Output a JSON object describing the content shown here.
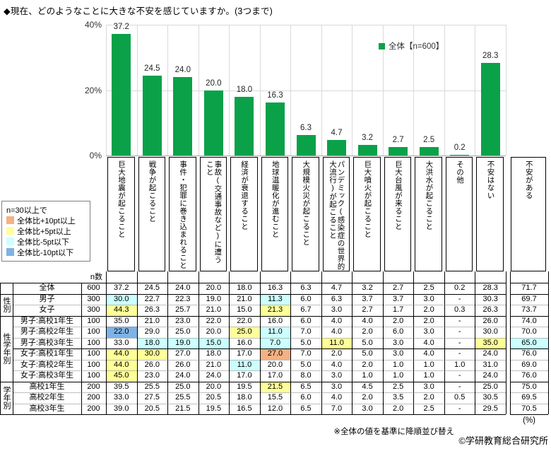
{
  "title": "◆現在、どのようなことに大きな不安を感じていますか。(3つまで)",
  "colors": {
    "bar": "#0aa149",
    "grid": "#d9d9d9",
    "axis": "#a6a6a6",
    "plus10": "#f4b183",
    "plus5": "#ffff99",
    "minus5": "#ccffff",
    "minus10": "#7eb3e6"
  },
  "chart_data": {
    "type": "bar",
    "title": "現在、どのようなことに大きな不安を感じていますか。(3つまで)",
    "legend": "全体【n=600】",
    "ylabel": "%",
    "ylim": [
      0,
      40
    ],
    "yticks": [
      {
        "value": 40,
        "label": "40%"
      },
      {
        "value": 20,
        "label": "20%"
      },
      {
        "value": 0,
        "label": "0%"
      }
    ],
    "grid": true,
    "legend_position": "top-right-inside",
    "categories": [
      "巨大地震が起こること",
      "戦争が起こること",
      "事件・犯罪に巻き込まれること",
      "事故(交通事故など)に遭うこと",
      "経済が衰退すること",
      "地球温暖化が進むこと",
      "大規模火災が起こること",
      "パンデミック(感染症の世界的大流行)が起こること",
      "巨大噴火が起こること",
      "巨大台風が来ること",
      "大洪水が起こること",
      "その他",
      "不安はない"
    ],
    "values": [
      37.2,
      24.5,
      24.0,
      20.0,
      18.0,
      16.3,
      6.3,
      4.7,
      3.2,
      2.7,
      2.5,
      0.2,
      28.3
    ]
  },
  "threshold_legend": {
    "header": "n=30以上で",
    "items": [
      {
        "label": "全体比+10pt以上",
        "color_key": "plus10"
      },
      {
        "label": "全体比+5pt以上",
        "color_key": "plus5"
      },
      {
        "label": "全体比-5pt以下",
        "color_key": "minus5"
      },
      {
        "label": "全体比-10pt以下",
        "color_key": "minus10"
      }
    ]
  },
  "table": {
    "n_header": "n数",
    "extra_column_label": "不安がある",
    "groups": [
      {
        "label": "性別",
        "start": 1,
        "end": 2
      },
      {
        "label": "性学年別",
        "start": 3,
        "end": 8
      },
      {
        "label": "学年別",
        "start": 9,
        "end": 11
      }
    ],
    "rows": [
      {
        "label": "全体",
        "n": "600",
        "sep": "solid-full",
        "values": [
          "37.2",
          "24.5",
          "24.0",
          "20.0",
          "18.0",
          "16.3",
          "6.3",
          "4.7",
          "3.2",
          "2.7",
          "2.5",
          "0.2",
          "28.3",
          "71.7"
        ],
        "highlights": {}
      },
      {
        "label": "男子",
        "n": "300",
        "sep": "dotted",
        "values": [
          "30.0",
          "22.7",
          "22.3",
          "19.0",
          "21.0",
          "11.3",
          "6.0",
          "6.3",
          "3.7",
          "3.7",
          "3.0",
          "-",
          "30.3",
          "69.7"
        ],
        "highlights": {
          "0": "minus5",
          "5": "minus5"
        }
      },
      {
        "label": "女子",
        "n": "300",
        "sep": "solid-full",
        "values": [
          "44.3",
          "26.3",
          "25.7",
          "21.0",
          "15.0",
          "21.3",
          "6.7",
          "3.0",
          "2.7",
          "1.7",
          "2.0",
          "0.3",
          "26.3",
          "73.7"
        ],
        "highlights": {
          "0": "plus5",
          "5": "plus5"
        }
      },
      {
        "label": "男子:高校1年生",
        "n": "100",
        "sep": "dotted",
        "values": [
          "35.0",
          "21.0",
          "23.0",
          "22.0",
          "22.0",
          "16.0",
          "6.0",
          "4.0",
          "4.0",
          "2.0",
          "2.0",
          "-",
          "26.0",
          "74.0"
        ],
        "highlights": {}
      },
      {
        "label": "男子:高校2年生",
        "n": "100",
        "sep": "dotted",
        "values": [
          "22.0",
          "29.0",
          "25.0",
          "20.0",
          "25.0",
          "11.0",
          "7.0",
          "4.0",
          "2.0",
          "6.0",
          "3.0",
          "-",
          "30.0",
          "70.0"
        ],
        "highlights": {
          "0": "minus10",
          "4": "plus5",
          "5": "minus5"
        }
      },
      {
        "label": "男子:高校3年生",
        "n": "100",
        "sep": "solid",
        "values": [
          "33.0",
          "18.0",
          "19.0",
          "15.0",
          "16.0",
          "7.0",
          "5.0",
          "11.0",
          "5.0",
          "3.0",
          "4.0",
          "-",
          "35.0",
          "65.0"
        ],
        "highlights": {
          "1": "minus5",
          "2": "minus5",
          "3": "minus5",
          "5": "minus5",
          "7": "plus5",
          "12": "plus5",
          "13": "minus5"
        }
      },
      {
        "label": "女子:高校1年生",
        "n": "100",
        "sep": "dotted",
        "values": [
          "44.0",
          "30.0",
          "27.0",
          "18.0",
          "17.0",
          "27.0",
          "7.0",
          "2.0",
          "5.0",
          "3.0",
          "4.0",
          "-",
          "24.0",
          "76.0"
        ],
        "highlights": {
          "0": "plus5",
          "1": "plus5",
          "5": "plus10"
        }
      },
      {
        "label": "女子:高校2年生",
        "n": "100",
        "sep": "dotted",
        "values": [
          "44.0",
          "26.0",
          "26.0",
          "21.0",
          "11.0",
          "20.0",
          "5.0",
          "4.0",
          "2.0",
          "1.0",
          "1.0",
          "1.0",
          "31.0",
          "69.0"
        ],
        "highlights": {
          "0": "plus5",
          "4": "minus5"
        }
      },
      {
        "label": "女子:高校3年生",
        "n": "100",
        "sep": "solid-full",
        "values": [
          "45.0",
          "23.0",
          "24.0",
          "24.0",
          "17.0",
          "17.0",
          "8.0",
          "3.0",
          "1.0",
          "1.0",
          "1.0",
          "-",
          "24.0",
          "76.0"
        ],
        "highlights": {
          "0": "plus5"
        }
      },
      {
        "label": "高校1年生",
        "n": "200",
        "sep": "dotted",
        "values": [
          "39.5",
          "25.5",
          "25.0",
          "20.0",
          "19.5",
          "21.5",
          "6.5",
          "3.0",
          "4.5",
          "2.5",
          "3.0",
          "-",
          "25.0",
          "75.0"
        ],
        "highlights": {
          "5": "plus5"
        }
      },
      {
        "label": "高校2年生",
        "n": "200",
        "sep": "dotted",
        "values": [
          "33.0",
          "27.5",
          "25.5",
          "20.5",
          "18.0",
          "15.5",
          "6.0",
          "4.0",
          "2.0",
          "3.5",
          "2.0",
          "0.5",
          "30.5",
          "69.5"
        ],
        "highlights": {}
      },
      {
        "label": "高校3年生",
        "n": "200",
        "sep": "solid-full",
        "values": [
          "39.0",
          "20.5",
          "21.5",
          "19.5",
          "16.5",
          "12.0",
          "6.5",
          "7.0",
          "3.0",
          "2.0",
          "2.5",
          "-",
          "29.5",
          "70.5"
        ],
        "highlights": {}
      }
    ]
  },
  "footer": {
    "percent_note": "(%)",
    "sort_note": "※全体の値を基準に降順並び替え",
    "copyright": "©学研教育総合研究所"
  }
}
